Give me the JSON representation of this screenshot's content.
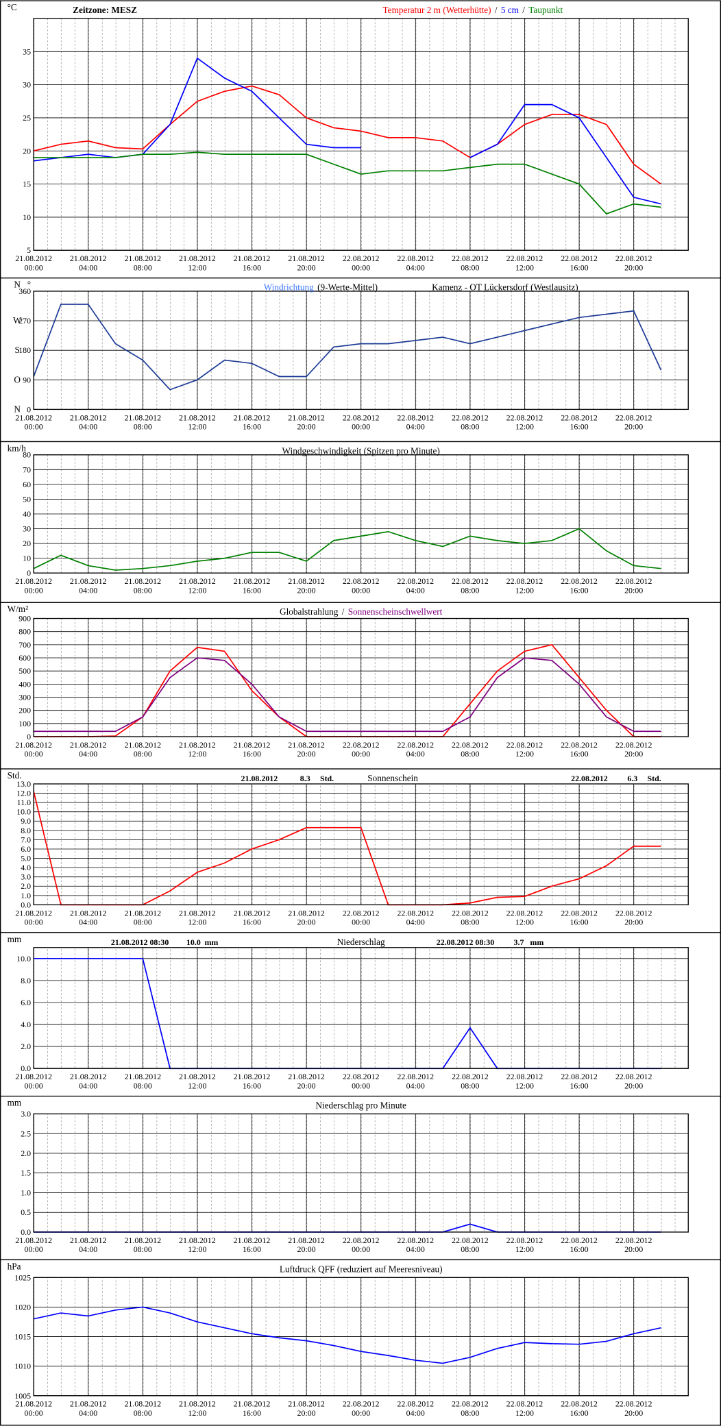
{
  "chart_data": [
    {
      "type": "line",
      "timezone": "Zeitzone: MESZ",
      "title_separator": "/",
      "ylabel": "°C",
      "x": [
        "21.08.2012 00:00",
        "21.08.2012 02:00",
        "21.08.2012 04:00",
        "21.08.2012 06:00",
        "21.08.2012 08:00",
        "21.08.2012 10:00",
        "21.08.2012 12:00",
        "21.08.2012 14:00",
        "21.08.2012 16:00",
        "21.08.2012 18:00",
        "21.08.2012 20:00",
        "21.08.2012 22:00",
        "22.08.2012 00:00",
        "22.08.2012 02:00",
        "22.08.2012 04:00",
        "22.08.2012 06:00",
        "22.08.2012 08:00",
        "22.08.2012 10:00",
        "22.08.2012 12:00",
        "22.08.2012 14:00",
        "22.08.2012 16:00",
        "22.08.2012 18:00",
        "22.08.2012 20:00",
        "22.08.2012 22:00"
      ],
      "xticks": [
        "21.08.2012 00:00",
        "21.08.2012 04:00",
        "21.08.2012 08:00",
        "21.08.2012 12:00",
        "21.08.2012 16:00",
        "21.08.2012 20:00",
        "22.08.2012 00:00",
        "22.08.2012 04:00",
        "22.08.2012 08:00",
        "22.08.2012 12:00",
        "22.08.2012 16:00",
        "22.08.2012 20:00"
      ],
      "ylim": [
        5,
        40
      ],
      "yticks": [
        5,
        10,
        15,
        20,
        25,
        30,
        35
      ],
      "series": [
        {
          "name": "Temperatur 2 m (Wetterhütte)",
          "color": "#ff0000",
          "values": [
            20,
            21,
            21.5,
            20.5,
            20.3,
            24,
            27.5,
            29,
            29.8,
            28.5,
            25,
            23.5,
            23,
            22,
            22,
            21.5,
            19,
            21,
            24,
            25.5,
            25.5,
            24,
            18,
            15
          ]
        },
        {
          "name": "5 cm",
          "color": "#0000ff",
          "values": [
            18.5,
            19,
            19.5,
            19,
            19.5,
            24,
            34,
            31,
            29,
            25,
            21,
            20.5,
            20.5,
            null,
            null,
            null,
            19,
            21,
            27,
            27,
            25,
            19,
            13,
            12
          ]
        },
        {
          "name": "Taupunkt",
          "color": "#008000",
          "values": [
            19,
            19,
            19,
            19,
            19.5,
            19.5,
            19.8,
            19.5,
            19.5,
            19.5,
            19.5,
            18,
            16.5,
            17,
            17,
            17,
            17.5,
            18,
            18,
            16.5,
            15,
            10.5,
            12,
            11.5
          ]
        }
      ]
    },
    {
      "type": "line",
      "ylabel": "°",
      "subtitle": "(9-Werte-Mittel)",
      "station": "Kamenz - OT Lückersdorf (Westlausitz)",
      "x": [
        "21.08.2012 00:00",
        "21.08.2012 02:00",
        "21.08.2012 04:00",
        "21.08.2012 06:00",
        "21.08.2012 08:00",
        "21.08.2012 10:00",
        "21.08.2012 12:00",
        "21.08.2012 14:00",
        "21.08.2012 16:00",
        "21.08.2012 18:00",
        "21.08.2012 20:00",
        "21.08.2012 22:00",
        "22.08.2012 00:00",
        "22.08.2012 02:00",
        "22.08.2012 04:00",
        "22.08.2012 06:00",
        "22.08.2012 08:00",
        "22.08.2012 10:00",
        "22.08.2012 12:00",
        "22.08.2012 14:00",
        "22.08.2012 16:00",
        "22.08.2012 18:00",
        "22.08.2012 20:00",
        "22.08.2012 22:00"
      ],
      "xticks": [
        "21.08.2012 00:00",
        "21.08.2012 04:00",
        "21.08.2012 08:00",
        "21.08.2012 12:00",
        "21.08.2012 16:00",
        "21.08.2012 20:00",
        "22.08.2012 00:00",
        "22.08.2012 04:00",
        "22.08.2012 08:00",
        "22.08.2012 12:00",
        "22.08.2012 16:00",
        "22.08.2012 20:00"
      ],
      "ylim": [
        0,
        360
      ],
      "yticks": [
        0,
        90,
        180,
        270,
        360
      ],
      "ytick_letters": [
        "N",
        "O",
        "S",
        "W",
        "N"
      ],
      "series": [
        {
          "name": "Windrichtung",
          "color": "#1e3c96",
          "label_color": "#3c78ff",
          "values": [
            100,
            320,
            320,
            200,
            150,
            60,
            90,
            150,
            140,
            100,
            100,
            190,
            200,
            200,
            210,
            220,
            200,
            220,
            240,
            260,
            280,
            290,
            300,
            120
          ]
        }
      ]
    },
    {
      "type": "line",
      "title": "Windgeschwindigkeit (Spitzen pro Minute)",
      "ylabel": "km/h",
      "x": [
        "21.08.2012 00:00",
        "21.08.2012 02:00",
        "21.08.2012 04:00",
        "21.08.2012 06:00",
        "21.08.2012 08:00",
        "21.08.2012 10:00",
        "21.08.2012 12:00",
        "21.08.2012 14:00",
        "21.08.2012 16:00",
        "21.08.2012 18:00",
        "21.08.2012 20:00",
        "21.08.2012 22:00",
        "22.08.2012 00:00",
        "22.08.2012 02:00",
        "22.08.2012 04:00",
        "22.08.2012 06:00",
        "22.08.2012 08:00",
        "22.08.2012 10:00",
        "22.08.2012 12:00",
        "22.08.2012 14:00",
        "22.08.2012 16:00",
        "22.08.2012 18:00",
        "22.08.2012 20:00",
        "22.08.2012 22:00"
      ],
      "xticks": [
        "21.08.2012 00:00",
        "21.08.2012 04:00",
        "21.08.2012 08:00",
        "21.08.2012 12:00",
        "21.08.2012 16:00",
        "21.08.2012 20:00",
        "22.08.2012 00:00",
        "22.08.2012 04:00",
        "22.08.2012 08:00",
        "22.08.2012 12:00",
        "22.08.2012 16:00",
        "22.08.2012 20:00"
      ],
      "ylim": [
        0,
        80
      ],
      "yticks": [
        0,
        10,
        20,
        30,
        40,
        50,
        60,
        70,
        80
      ],
      "color": "#008000",
      "values": [
        3,
        12,
        5,
        2,
        3,
        5,
        8,
        10,
        14,
        14,
        8,
        22,
        25,
        28,
        22,
        18,
        25,
        22,
        20,
        22,
        30,
        15,
        5,
        3
      ]
    },
    {
      "type": "line",
      "title_separator": "/",
      "ylabel": "W/m²",
      "x": [
        "21.08.2012 00:00",
        "21.08.2012 02:00",
        "21.08.2012 04:00",
        "21.08.2012 06:00",
        "21.08.2012 08:00",
        "21.08.2012 10:00",
        "21.08.2012 12:00",
        "21.08.2012 14:00",
        "21.08.2012 16:00",
        "21.08.2012 18:00",
        "21.08.2012 20:00",
        "21.08.2012 22:00",
        "22.08.2012 00:00",
        "22.08.2012 02:00",
        "22.08.2012 04:00",
        "22.08.2012 06:00",
        "22.08.2012 08:00",
        "22.08.2012 10:00",
        "22.08.2012 12:00",
        "22.08.2012 14:00",
        "22.08.2012 16:00",
        "22.08.2012 18:00",
        "22.08.2012 20:00",
        "22.08.2012 22:00"
      ],
      "xticks": [
        "21.08.2012 00:00",
        "21.08.2012 04:00",
        "21.08.2012 08:00",
        "21.08.2012 12:00",
        "21.08.2012 16:00",
        "21.08.2012 20:00",
        "22.08.2012 00:00",
        "22.08.2012 04:00",
        "22.08.2012 08:00",
        "22.08.2012 12:00",
        "22.08.2012 16:00",
        "22.08.2012 20:00"
      ],
      "ylim": [
        0,
        900
      ],
      "yticks": [
        0,
        100,
        200,
        300,
        400,
        500,
        600,
        700,
        800,
        900
      ],
      "series": [
        {
          "name": "Globalstrahlung",
          "color": "#ff0000",
          "label_color": "#000000",
          "values": [
            0,
            0,
            0,
            5,
            150,
            500,
            680,
            650,
            350,
            150,
            0,
            0,
            0,
            0,
            0,
            0,
            250,
            500,
            650,
            700,
            450,
            200,
            0,
            0
          ]
        },
        {
          "name": "Sonnenscheinschwellwert",
          "color": "#800080",
          "label_color": "#800080",
          "values": [
            40,
            40,
            40,
            40,
            150,
            450,
            600,
            580,
            400,
            150,
            40,
            40,
            40,
            40,
            40,
            40,
            150,
            450,
            600,
            580,
            400,
            150,
            40,
            40
          ]
        }
      ]
    },
    {
      "type": "line",
      "title": "Sonnenschein",
      "ylabel": "Std.",
      "totals": [
        {
          "date": "21.08.2012",
          "value": 8.3,
          "unit": "Std."
        },
        {
          "date": "22.08.2012",
          "value": 6.3,
          "unit": "Std."
        }
      ],
      "x": [
        "21.08.2012 00:00",
        "21.08.2012 02:00",
        "21.08.2012 04:00",
        "21.08.2012 06:00",
        "21.08.2012 08:00",
        "21.08.2012 10:00",
        "21.08.2012 12:00",
        "21.08.2012 14:00",
        "21.08.2012 16:00",
        "21.08.2012 18:00",
        "21.08.2012 20:00",
        "21.08.2012 22:00",
        "22.08.2012 00:00",
        "22.08.2012 02:00",
        "22.08.2012 04:00",
        "22.08.2012 06:00",
        "22.08.2012 08:00",
        "22.08.2012 10:00",
        "22.08.2012 12:00",
        "22.08.2012 14:00",
        "22.08.2012 16:00",
        "22.08.2012 18:00",
        "22.08.2012 20:00",
        "22.08.2012 22:00"
      ],
      "xticks": [
        "21.08.2012 00:00",
        "21.08.2012 04:00",
        "21.08.2012 08:00",
        "21.08.2012 12:00",
        "21.08.2012 16:00",
        "21.08.2012 20:00",
        "22.08.2012 00:00",
        "22.08.2012 04:00",
        "22.08.2012 08:00",
        "22.08.2012 12:00",
        "22.08.2012 16:00",
        "22.08.2012 20:00"
      ],
      "ylim": [
        0,
        13
      ],
      "yticks": [
        {
          "value": 0,
          "label": "0.0"
        },
        {
          "value": 1,
          "label": "1.0"
        },
        {
          "value": 2,
          "label": "2.0"
        },
        {
          "value": 3,
          "label": "3.0"
        },
        {
          "value": 4,
          "label": "4.0"
        },
        {
          "value": 5,
          "label": "5.0"
        },
        {
          "value": 6,
          "label": "6.0"
        },
        {
          "value": 7,
          "label": "7.0"
        },
        {
          "value": 8,
          "label": "8.0"
        },
        {
          "value": 9,
          "label": "9.0"
        },
        {
          "value": 10,
          "label": "10.0"
        },
        {
          "value": 11,
          "label": "11.0"
        },
        {
          "value": 12,
          "label": "12.0"
        },
        {
          "value": 13,
          "label": "13.0"
        }
      ],
      "color": "#ff0000",
      "values": [
        12.2,
        0,
        0,
        0,
        0,
        1.5,
        3.5,
        4.5,
        6,
        7,
        8.3,
        8.3,
        8.3,
        0,
        0,
        0,
        0.2,
        0.8,
        0.9,
        2,
        2.8,
        4.2,
        6.3,
        6.3
      ]
    },
    {
      "type": "line",
      "title": "Niederschlag",
      "ylabel": "mm",
      "totals": [
        {
          "date": "21.08.2012 08:30",
          "value": 10,
          "value_label": "10.0",
          "unit": "mm"
        },
        {
          "date": "22.08.2012 08:30",
          "value": 3.7,
          "unit": "mm"
        }
      ],
      "x": [
        "21.08.2012 00:00",
        "21.08.2012 02:00",
        "21.08.2012 04:00",
        "21.08.2012 06:00",
        "21.08.2012 08:00",
        "21.08.2012 10:00",
        "21.08.2012 12:00",
        "21.08.2012 14:00",
        "21.08.2012 16:00",
        "21.08.2012 18:00",
        "21.08.2012 20:00",
        "21.08.2012 22:00",
        "22.08.2012 00:00",
        "22.08.2012 02:00",
        "22.08.2012 04:00",
        "22.08.2012 06:00",
        "22.08.2012 08:00",
        "22.08.2012 10:00",
        "22.08.2012 12:00",
        "22.08.2012 14:00",
        "22.08.2012 16:00",
        "22.08.2012 18:00",
        "22.08.2012 20:00",
        "22.08.2012 22:00"
      ],
      "xticks": [
        "21.08.2012 00:00",
        "21.08.2012 04:00",
        "21.08.2012 08:00",
        "21.08.2012 12:00",
        "21.08.2012 16:00",
        "21.08.2012 20:00",
        "22.08.2012 00:00",
        "22.08.2012 04:00",
        "22.08.2012 08:00",
        "22.08.2012 12:00",
        "22.08.2012 16:00",
        "22.08.2012 20:00"
      ],
      "ylim": [
        0,
        11
      ],
      "yticks": [
        {
          "value": 0,
          "label": "0.0"
        },
        {
          "value": 2,
          "label": "2.0"
        },
        {
          "value": 4,
          "label": "4.0"
        },
        {
          "value": 6,
          "label": "6.0"
        },
        {
          "value": 8,
          "label": "8.0"
        },
        {
          "value": 10,
          "label": "10.0"
        }
      ],
      "color": "#0000ff",
      "values": [
        10,
        10,
        10,
        10,
        10,
        0,
        0,
        0,
        0,
        0,
        0,
        0,
        0,
        0,
        0,
        0,
        3.7,
        0,
        0,
        0,
        0,
        0,
        0,
        0
      ]
    },
    {
      "type": "line",
      "title": "Niederschlag pro Minute",
      "ylabel": "mm",
      "x": [
        "21.08.2012 00:00",
        "21.08.2012 02:00",
        "21.08.2012 04:00",
        "21.08.2012 06:00",
        "21.08.2012 08:00",
        "21.08.2012 10:00",
        "21.08.2012 12:00",
        "21.08.2012 14:00",
        "21.08.2012 16:00",
        "21.08.2012 18:00",
        "21.08.2012 20:00",
        "21.08.2012 22:00",
        "22.08.2012 00:00",
        "22.08.2012 02:00",
        "22.08.2012 04:00",
        "22.08.2012 06:00",
        "22.08.2012 08:00",
        "22.08.2012 10:00",
        "22.08.2012 12:00",
        "22.08.2012 14:00",
        "22.08.2012 16:00",
        "22.08.2012 18:00",
        "22.08.2012 20:00",
        "22.08.2012 22:00"
      ],
      "xticks": [
        "21.08.2012 00:00",
        "21.08.2012 04:00",
        "21.08.2012 08:00",
        "21.08.2012 12:00",
        "21.08.2012 16:00",
        "21.08.2012 20:00",
        "22.08.2012 00:00",
        "22.08.2012 04:00",
        "22.08.2012 08:00",
        "22.08.2012 12:00",
        "22.08.2012 16:00",
        "22.08.2012 20:00"
      ],
      "ylim": [
        0,
        3
      ],
      "yticks": [
        {
          "value": 0,
          "label": "0.0"
        },
        {
          "value": 0.5,
          "label": "0.5"
        },
        {
          "value": 1,
          "label": "1.0"
        },
        {
          "value": 1.5,
          "label": "1.5"
        },
        {
          "value": 2,
          "label": "2.0"
        },
        {
          "value": 2.5,
          "label": "2.5"
        },
        {
          "value": 3,
          "label": "3.0"
        }
      ],
      "color": "#0000ff",
      "values": [
        0,
        0,
        0,
        0,
        0,
        0,
        0,
        0,
        0,
        0,
        0,
        0,
        0,
        0,
        0,
        0,
        0.2,
        0,
        0,
        0,
        0,
        0,
        0,
        0
      ]
    },
    {
      "type": "line",
      "title": "Luftdruck QFF (reduziert auf Meeresniveau)",
      "ylabel": "hPa",
      "x": [
        "21.08.2012 00:00",
        "21.08.2012 02:00",
        "21.08.2012 04:00",
        "21.08.2012 06:00",
        "21.08.2012 08:00",
        "21.08.2012 10:00",
        "21.08.2012 12:00",
        "21.08.2012 14:00",
        "21.08.2012 16:00",
        "21.08.2012 18:00",
        "21.08.2012 20:00",
        "21.08.2012 22:00",
        "22.08.2012 00:00",
        "22.08.2012 02:00",
        "22.08.2012 04:00",
        "22.08.2012 06:00",
        "22.08.2012 08:00",
        "22.08.2012 10:00",
        "22.08.2012 12:00",
        "22.08.2012 14:00",
        "22.08.2012 16:00",
        "22.08.2012 18:00",
        "22.08.2012 20:00",
        "22.08.2012 22:00"
      ],
      "xticks": [
        "21.08.2012 00:00",
        "21.08.2012 04:00",
        "21.08.2012 08:00",
        "21.08.2012 12:00",
        "21.08.2012 16:00",
        "21.08.2012 20:00",
        "22.08.2012 00:00",
        "22.08.2012 04:00",
        "22.08.2012 08:00",
        "22.08.2012 12:00",
        "22.08.2012 16:00",
        "22.08.2012 20:00"
      ],
      "ylim": [
        1005,
        1025
      ],
      "yticks": [
        1005,
        1010,
        1015,
        1020,
        1025
      ],
      "color": "#0000ff",
      "values": [
        1018,
        1019,
        1018.5,
        1019.5,
        1020,
        1019,
        1017.5,
        1016.5,
        1015.5,
        1014.8,
        1014.3,
        1013.5,
        1012.5,
        1011.8,
        1011,
        1010.5,
        1011.5,
        1013,
        1014,
        1013.8,
        1013.7,
        1014.2,
        1015.5,
        1016.5
      ]
    }
  ]
}
